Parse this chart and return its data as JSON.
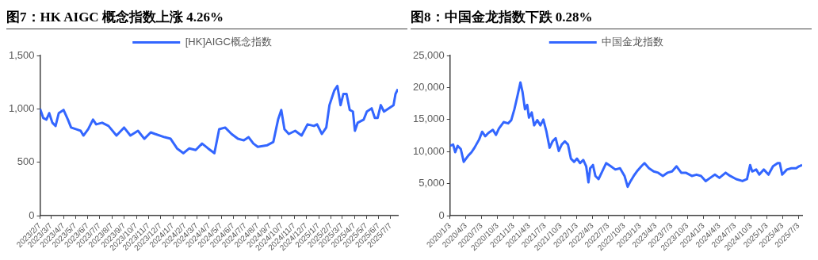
{
  "chart_data": [
    {
      "type": "line",
      "title": "图7：HK AIGC 概念指数上涨 4.26%",
      "legend": "top",
      "grid": false,
      "xlim": [
        "2023-02-07",
        "2025-07-25"
      ],
      "xticks": [
        {
          "value": "2023-02-07",
          "label": "2023/2/7"
        },
        {
          "value": "2023-03-07",
          "label": "2023/3/7"
        },
        {
          "value": "2023-04-07",
          "label": "2023/4/7"
        },
        {
          "value": "2023-05-07",
          "label": "2023/5/7"
        },
        {
          "value": "2023-06-07",
          "label": "2023/6/7"
        },
        {
          "value": "2023-07-07",
          "label": "2023/7/7"
        },
        {
          "value": "2023-08-07",
          "label": "2023/8/7"
        },
        {
          "value": "2023-09-07",
          "label": "2023/9/7"
        },
        {
          "value": "2023-10-07",
          "label": "2023/10/7"
        },
        {
          "value": "2023-11-07",
          "label": "2023/11/7"
        },
        {
          "value": "2023-12-07",
          "label": "2023/12/7"
        },
        {
          "value": "2024-01-07",
          "label": "2024/1/7"
        },
        {
          "value": "2024-02-07",
          "label": "2024/2/7"
        },
        {
          "value": "2024-03-07",
          "label": "2024/3/7"
        },
        {
          "value": "2024-04-07",
          "label": "2024/4/7"
        },
        {
          "value": "2024-05-07",
          "label": "2024/5/7"
        },
        {
          "value": "2024-06-07",
          "label": "2024/6/7"
        },
        {
          "value": "2024-07-07",
          "label": "2024/7/7"
        },
        {
          "value": "2024-08-07",
          "label": "2024/8/7"
        },
        {
          "value": "2024-09-07",
          "label": "2024/9/7"
        },
        {
          "value": "2024-10-07",
          "label": "2024/10/7"
        },
        {
          "value": "2024-11-07",
          "label": "2024/11/7"
        },
        {
          "value": "2024-12-07",
          "label": "2024/12/7"
        },
        {
          "value": "2025-01-07",
          "label": "2025/1/7"
        },
        {
          "value": "2025-02-07",
          "label": "2025/2/7"
        },
        {
          "value": "2025-03-07",
          "label": "2025/3/7"
        },
        {
          "value": "2025-04-07",
          "label": "2025/4/7"
        },
        {
          "value": "2025-05-07",
          "label": "2025/5/7"
        },
        {
          "value": "2025-06-07",
          "label": "2025/6/7"
        },
        {
          "value": "2025-07-07",
          "label": "2025/7/7"
        }
      ],
      "ylim": [
        0,
        1500
      ],
      "yticks": [
        {
          "value": 0,
          "label": "0"
        },
        {
          "value": 500,
          "label": "500"
        },
        {
          "value": 1000,
          "label": "1,000"
        },
        {
          "value": 1500,
          "label": "1,500"
        }
      ],
      "x": [
        "2023-02-07",
        "2023-02-15",
        "2023-02-23",
        "2023-03-02",
        "2023-03-10",
        "2023-03-18",
        "2023-03-26",
        "2023-04-07",
        "2023-04-18",
        "2023-04-26",
        "2023-05-08",
        "2023-05-20",
        "2023-05-27",
        "2023-06-08",
        "2023-06-20",
        "2023-06-28",
        "2023-07-13",
        "2023-07-29",
        "2023-08-18",
        "2023-09-06",
        "2023-09-22",
        "2023-10-11",
        "2023-10-27",
        "2023-11-12",
        "2023-11-23",
        "2023-12-17",
        "2024-01-01",
        "2024-01-17",
        "2024-02-02",
        "2024-02-17",
        "2024-03-04",
        "2024-03-20",
        "2024-04-04",
        "2024-04-20",
        "2024-05-02",
        "2024-05-17",
        "2024-06-02",
        "2024-06-18",
        "2024-07-03",
        "2024-07-15",
        "2024-07-27",
        "2024-08-07",
        "2024-08-31",
        "2024-09-15",
        "2024-09-27",
        "2024-10-05",
        "2024-10-13",
        "2024-10-24",
        "2024-11-09",
        "2024-11-25",
        "2024-12-10",
        "2024-12-26",
        "2025-01-03",
        "2025-01-15",
        "2025-01-26",
        "2025-02-03",
        "2025-02-15",
        "2025-02-23",
        "2025-03-03",
        "2025-03-10",
        "2025-03-18",
        "2025-03-26",
        "2025-04-03",
        "2025-04-08",
        "2025-04-15",
        "2025-04-30",
        "2025-05-08",
        "2025-05-20",
        "2025-05-28",
        "2025-06-04",
        "2025-06-12",
        "2025-06-20",
        "2025-07-02",
        "2025-07-14",
        "2025-07-19",
        "2025-07-25"
      ],
      "series": [
        {
          "name": "[HK]AIGC概念指数",
          "color": "#3366ff",
          "values": [
            1000,
            915,
            900,
            960,
            870,
            840,
            960,
            990,
            900,
            825,
            810,
            795,
            750,
            810,
            900,
            855,
            870,
            840,
            750,
            825,
            750,
            795,
            720,
            780,
            765,
            735,
            720,
            630,
            585,
            630,
            615,
            675,
            630,
            585,
            810,
            825,
            765,
            720,
            705,
            735,
            675,
            645,
            660,
            690,
            900,
            990,
            810,
            765,
            795,
            750,
            855,
            840,
            855,
            765,
            825,
            1035,
            1170,
            1215,
            1035,
            1140,
            1140,
            990,
            975,
            795,
            870,
            900,
            975,
            1005,
            915,
            915,
            1035,
            975,
            1005,
            1035,
            1140,
            1185
          ]
        }
      ]
    },
    {
      "type": "line",
      "title": "图8：中国金龙指数下跌 0.28%",
      "legend": "top",
      "grid": false,
      "xlim": [
        "2020-01-03",
        "2025-07-25"
      ],
      "xticks": [
        {
          "value": "2020-01-03",
          "label": "2020/1/3"
        },
        {
          "value": "2020-04-03",
          "label": "2020/4/3"
        },
        {
          "value": "2020-07-03",
          "label": "2020/7/3"
        },
        {
          "value": "2020-10-03",
          "label": "2020/10/3"
        },
        {
          "value": "2021-01-03",
          "label": "2021/1/3"
        },
        {
          "value": "2021-04-03",
          "label": "2021/4/3"
        },
        {
          "value": "2021-07-03",
          "label": "2021/7/3"
        },
        {
          "value": "2021-10-03",
          "label": "2021/10/3"
        },
        {
          "value": "2022-01-03",
          "label": "2022/1/3"
        },
        {
          "value": "2022-04-03",
          "label": "2022/4/3"
        },
        {
          "value": "2022-07-03",
          "label": "2022/7/3"
        },
        {
          "value": "2022-10-03",
          "label": "2022/10/3"
        },
        {
          "value": "2023-01-03",
          "label": "2023/1/3"
        },
        {
          "value": "2023-04-03",
          "label": "2023/4/3"
        },
        {
          "value": "2023-07-03",
          "label": "2023/7/3"
        },
        {
          "value": "2023-10-03",
          "label": "2023/10/3"
        },
        {
          "value": "2024-01-03",
          "label": "2024/1/3"
        },
        {
          "value": "2024-04-03",
          "label": "2024/4/3"
        },
        {
          "value": "2024-07-03",
          "label": "2024/7/3"
        },
        {
          "value": "2024-10-03",
          "label": "2024/10/3"
        },
        {
          "value": "2025-01-03",
          "label": "2025/1/3"
        },
        {
          "value": "2025-04-03",
          "label": "2025/4/3"
        },
        {
          "value": "2025-07-03",
          "label": "2025/7/3"
        }
      ],
      "ylim": [
        0,
        25000
      ],
      "yticks": [
        {
          "value": 0,
          "label": "0"
        },
        {
          "value": 5000,
          "label": "5,000"
        },
        {
          "value": 10000,
          "label": "10,000"
        },
        {
          "value": 15000,
          "label": "15,000"
        },
        {
          "value": 20000,
          "label": "20,000"
        },
        {
          "value": 25000,
          "label": "25,000"
        }
      ],
      "x": [
        "2020-01-03",
        "2020-01-21",
        "2020-02-02",
        "2020-02-16",
        "2020-03-05",
        "2020-03-22",
        "2020-04-18",
        "2020-05-06",
        "2020-05-23",
        "2020-06-19",
        "2020-07-06",
        "2020-07-24",
        "2020-08-11",
        "2020-09-06",
        "2020-09-24",
        "2020-10-11",
        "2020-11-07",
        "2020-12-03",
        "2020-12-21",
        "2021-01-08",
        "2021-01-25",
        "2021-02-12",
        "2021-02-24",
        "2021-03-10",
        "2021-03-23",
        "2021-04-02",
        "2021-04-18",
        "2021-05-02",
        "2021-05-20",
        "2021-06-07",
        "2021-06-24",
        "2021-07-12",
        "2021-07-30",
        "2021-08-16",
        "2021-09-03",
        "2021-09-21",
        "2021-10-08",
        "2021-10-26",
        "2021-11-13",
        "2021-11-30",
        "2021-12-18",
        "2022-01-04",
        "2022-01-22",
        "2022-02-09",
        "2022-02-26",
        "2022-03-11",
        "2022-03-21",
        "2022-04-06",
        "2022-04-20",
        "2022-05-08",
        "2022-05-26",
        "2022-06-21",
        "2022-07-18",
        "2022-08-13",
        "2022-09-09",
        "2022-10-05",
        "2022-10-23",
        "2022-11-09",
        "2022-11-27",
        "2022-12-15",
        "2023-01-10",
        "2023-01-28",
        "2023-02-23",
        "2023-03-22",
        "2023-04-17",
        "2023-05-14",
        "2023-06-09",
        "2023-07-06",
        "2023-08-01",
        "2023-08-28",
        "2023-09-23",
        "2023-10-28",
        "2023-11-24",
        "2023-12-20",
        "2024-01-16",
        "2024-02-11",
        "2024-03-09",
        "2024-04-04",
        "2024-05-10",
        "2024-06-05",
        "2024-07-10",
        "2024-08-15",
        "2024-09-10",
        "2024-09-28",
        "2024-10-10",
        "2024-11-02",
        "2024-11-20",
        "2024-12-16",
        "2025-01-12",
        "2025-02-07",
        "2025-03-06",
        "2025-03-18",
        "2025-04-01",
        "2025-04-28",
        "2025-05-24",
        "2025-06-20",
        "2025-07-07",
        "2025-07-25"
      ],
      "series": [
        {
          "name": "中国金龙指数",
          "color": "#3366ff",
          "values": [
            10900,
            11100,
            9900,
            10900,
            10400,
            8400,
            9400,
            9900,
            10600,
            11900,
            13100,
            12400,
            12900,
            13400,
            12600,
            13600,
            14600,
            14400,
            14900,
            16600,
            18600,
            20800,
            19300,
            16600,
            17300,
            15300,
            16100,
            14100,
            14900,
            14100,
            15000,
            13100,
            10600,
            11600,
            12100,
            10100,
            11100,
            11600,
            11100,
            8900,
            8400,
            8900,
            8200,
            8700,
            7700,
            5200,
            7400,
            7900,
            6200,
            5700,
            6700,
            8200,
            7700,
            7200,
            7400,
            6200,
            4500,
            5400,
            6200,
            6900,
            7700,
            8200,
            7400,
            6900,
            6700,
            6200,
            6700,
            6900,
            7700,
            6700,
            6700,
            6200,
            6400,
            6200,
            5400,
            5900,
            6400,
            5900,
            6700,
            6200,
            5700,
            5400,
            5700,
            7900,
            6900,
            7200,
            6400,
            7200,
            6400,
            7700,
            8200,
            8200,
            6400,
            7200,
            7400,
            7400,
            7700,
            7900
          ]
        }
      ]
    }
  ]
}
